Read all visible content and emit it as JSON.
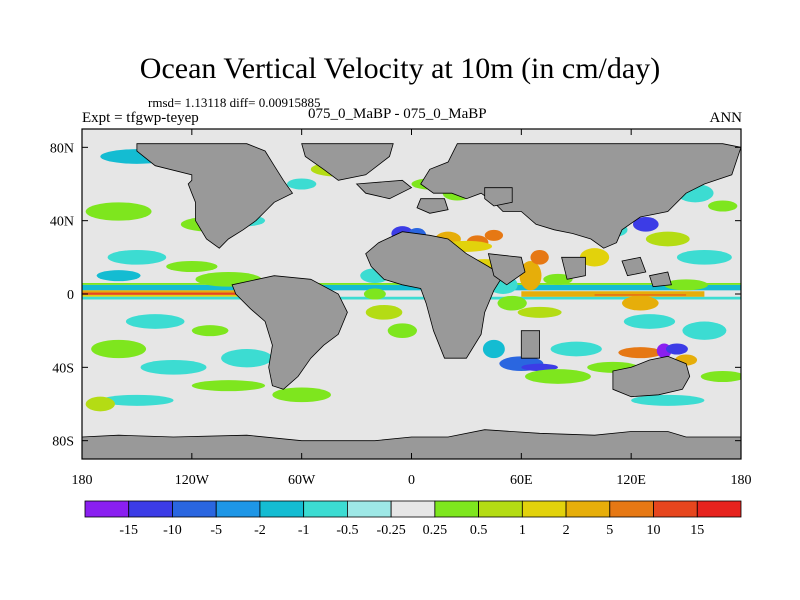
{
  "chart_data": {
    "type": "heatmap",
    "title": "Ocean Vertical Velocity at 10m (in cm/day)",
    "stats": "rmsd= 1.13118 diff= 0.00915885",
    "experiment": "Expt = tfgwp-teyep",
    "cases": "075_0_MaBP - 075_0_MaBP",
    "season": "ANN",
    "x_ticks": [
      "180",
      "120W",
      "60W",
      "0",
      "60E",
      "120E",
      "180"
    ],
    "x_values": [
      -180,
      -120,
      -60,
      0,
      60,
      120,
      180
    ],
    "y_ticks": [
      "80N",
      "40N",
      "0",
      "40S",
      "80S"
    ],
    "y_values": [
      80,
      40,
      0,
      -40,
      -80
    ],
    "xlim": [
      -180,
      180
    ],
    "ylim": [
      -90,
      90
    ],
    "colorbar": {
      "labels": [
        "-15",
        "-10",
        "-5",
        "-2",
        "-1",
        "-0.5",
        "-0.25",
        "0.25",
        "0.5",
        "1",
        "2",
        "5",
        "10",
        "15"
      ],
      "colors": [
        "#8a1ff0",
        "#3c3ce6",
        "#2a66e0",
        "#1e96e6",
        "#14bcd2",
        "#3cdcd2",
        "#9ee8e6",
        "#e6e6e6",
        "#7ee61e",
        "#b4dc14",
        "#e2d20c",
        "#e6ae0a",
        "#e67814",
        "#e6461e",
        "#e6231e"
      ]
    },
    "land_color": "#999999"
  }
}
